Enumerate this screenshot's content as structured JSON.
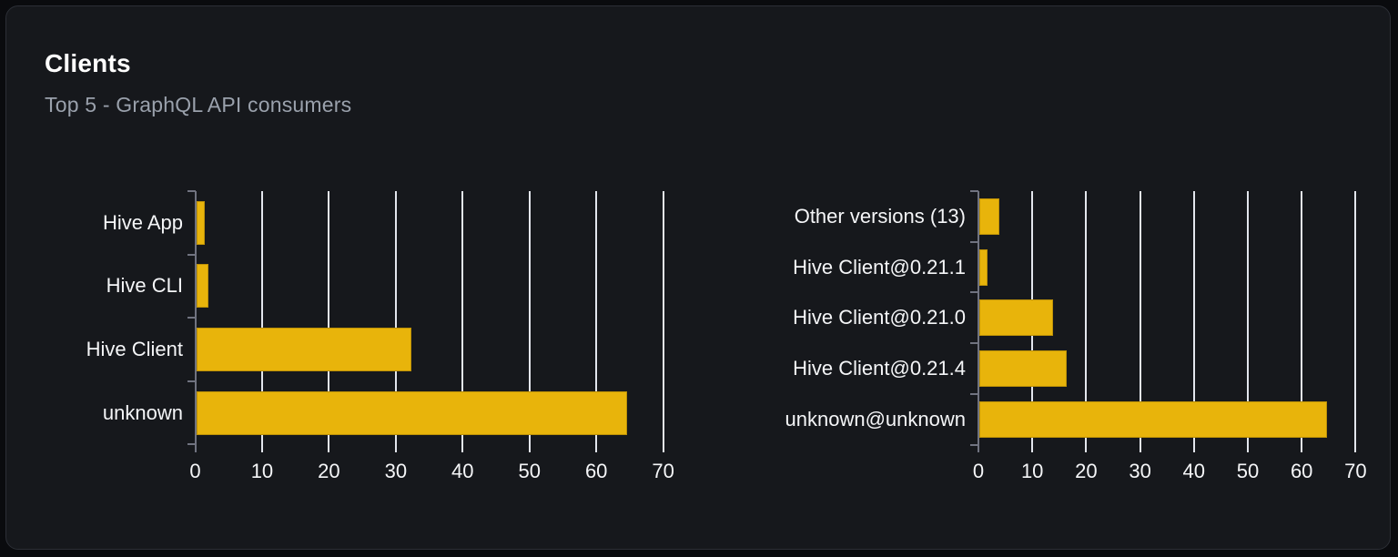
{
  "header": {
    "title": "Clients",
    "subtitle": "Top 5 - GraphQL API consumers"
  },
  "colors": {
    "page_background": "#0a0b0e",
    "card_background": "#16181c",
    "card_border": "#2c2f36",
    "bar_fill": "#e8b40b",
    "gridline": "#e3e6ed",
    "axis": "#707380",
    "label_text": "#f5f6f8",
    "subtitle_text": "#9aa1ac"
  },
  "chart_data": [
    {
      "type": "bar",
      "orientation": "horizontal",
      "categories": [
        "Hive App",
        "Hive CLI",
        "Hive Client",
        "unknown"
      ],
      "values": [
        1.3,
        1.9,
        32.2,
        64.5
      ],
      "xlim": [
        0,
        70
      ],
      "xticks": [
        0,
        10,
        20,
        30,
        40,
        50,
        60,
        70
      ],
      "grid": true,
      "legend": false
    },
    {
      "type": "bar",
      "orientation": "horizontal",
      "categories": [
        "Other versions (13)",
        "Hive Client@0.21.1",
        "Hive Client@0.21.0",
        "Hive Client@0.21.4",
        "unknown@unknown"
      ],
      "values": [
        3.8,
        1.6,
        13.7,
        16.3,
        64.6
      ],
      "xlim": [
        0,
        70
      ],
      "xticks": [
        0,
        10,
        20,
        30,
        40,
        50,
        60,
        70
      ],
      "grid": true,
      "legend": false
    }
  ]
}
